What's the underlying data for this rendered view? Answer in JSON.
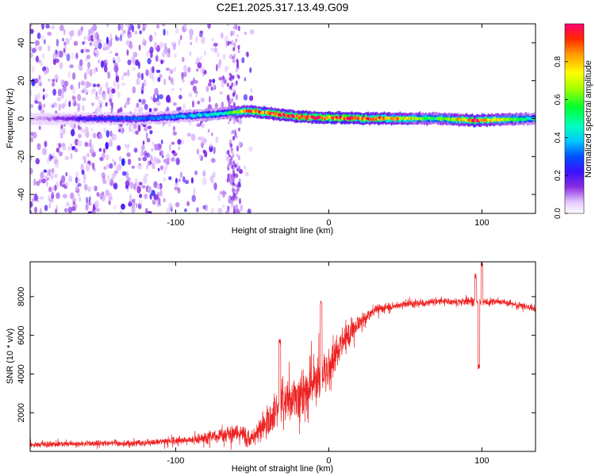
{
  "title": "C2E1.2025.317.13.49.G09",
  "colors": {
    "series": "#ee2222",
    "spectrogram_base": "#6a1cff",
    "axis": "#000000"
  },
  "chart_data": [
    {
      "type": "heatmap",
      "title": "C2E1.2025.317.13.49.G09",
      "xlabel": "Height of straight line (km)",
      "ylabel": "Frequency (Hz)",
      "xlim": [
        -195,
        135
      ],
      "ylim": [
        -50,
        50
      ],
      "xticks": [
        -100,
        0,
        100
      ],
      "yticks": [
        -40,
        -20,
        0,
        20,
        40
      ],
      "ridge": [
        {
          "x": -195,
          "freq": 0,
          "amp": 0.05
        },
        {
          "x": -150,
          "freq": 0,
          "amp": 0.25
        },
        {
          "x": -120,
          "freq": 0,
          "amp": 0.3
        },
        {
          "x": -100,
          "freq": 1,
          "amp": 0.35
        },
        {
          "x": -80,
          "freq": 2,
          "amp": 0.4
        },
        {
          "x": -65,
          "freq": 3,
          "amp": 0.5
        },
        {
          "x": -55,
          "freq": 4,
          "amp": 0.85
        },
        {
          "x": -40,
          "freq": 3,
          "amp": 0.9
        },
        {
          "x": -20,
          "freq": 1,
          "amp": 0.95
        },
        {
          "x": 0,
          "freq": 0.5,
          "amp": 0.95
        },
        {
          "x": 30,
          "freq": 0,
          "amp": 0.9
        },
        {
          "x": 70,
          "freq": 0,
          "amp": 0.55
        },
        {
          "x": 95,
          "freq": -1,
          "amp": 0.9
        },
        {
          "x": 135,
          "freq": 0,
          "amp": 0.45
        }
      ],
      "colorbar": {
        "label": "Normalized spectral amplitude",
        "range": [
          0,
          1
        ],
        "ticks": [
          0.0,
          0.2,
          0.4,
          0.6,
          0.8
        ]
      }
    },
    {
      "type": "line",
      "xlabel": "Height of straight line (km)",
      "ylabel": "SNR (10 * v/v)",
      "xlim": [
        -195,
        135
      ],
      "ylim": [
        0,
        9800
      ],
      "xticks": [
        -100,
        0,
        100
      ],
      "yticks": [
        2000,
        4000,
        6000,
        8000
      ],
      "series": [
        {
          "name": "SNR",
          "envelope": [
            {
              "x": -195,
              "mean": 350,
              "spread": 300
            },
            {
              "x": -160,
              "mean": 400,
              "spread": 300
            },
            {
              "x": -120,
              "mean": 450,
              "spread": 350
            },
            {
              "x": -90,
              "mean": 600,
              "spread": 450
            },
            {
              "x": -75,
              "mean": 800,
              "spread": 700
            },
            {
              "x": -60,
              "mean": 900,
              "spread": 1000
            },
            {
              "x": -50,
              "mean": 700,
              "spread": 900
            },
            {
              "x": -40,
              "mean": 1600,
              "spread": 1600
            },
            {
              "x": -30,
              "mean": 2500,
              "spread": 2200
            },
            {
              "x": -20,
              "mean": 2800,
              "spread": 2600
            },
            {
              "x": -10,
              "mean": 3500,
              "spread": 2800
            },
            {
              "x": 0,
              "mean": 4300,
              "spread": 2500
            },
            {
              "x": 10,
              "mean": 5800,
              "spread": 1500
            },
            {
              "x": 20,
              "mean": 6700,
              "spread": 900
            },
            {
              "x": 30,
              "mean": 7300,
              "spread": 500
            },
            {
              "x": 50,
              "mean": 7600,
              "spread": 400
            },
            {
              "x": 70,
              "mean": 7750,
              "spread": 350
            },
            {
              "x": 90,
              "mean": 7750,
              "spread": 450
            },
            {
              "x": 100,
              "mean": 7700,
              "spread": 500
            },
            {
              "x": 110,
              "mean": 7750,
              "spread": 350
            },
            {
              "x": 135,
              "mean": 7400,
              "spread": 300
            }
          ],
          "events": [
            {
              "x": 96,
              "y": 9200
            },
            {
              "x": 98,
              "y": 4500
            },
            {
              "x": 100,
              "y": 9800
            },
            {
              "x": -5,
              "y": 7800
            },
            {
              "x": -32,
              "y": 5800
            }
          ]
        }
      ]
    }
  ]
}
